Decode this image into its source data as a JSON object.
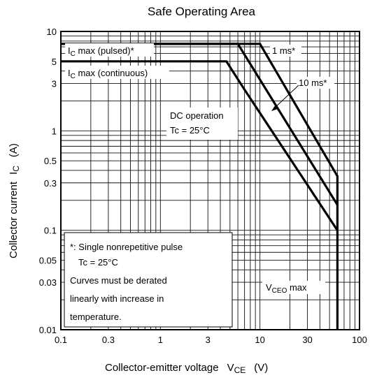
{
  "chart_data": {
    "type": "line",
    "title": "Safe Operating Area",
    "xlabel": "Collector-emitter voltage",
    "xlabel_sym": "V",
    "xlabel_sub": "CE",
    "xlabel_unit": "(V)",
    "ylabel": "Collector current",
    "ylabel_sym": "I",
    "ylabel_sub": "C",
    "ylabel_unit": "(A)",
    "xscale": "log",
    "yscale": "log",
    "xlim": [
      0.1,
      100
    ],
    "ylim": [
      0.01,
      10
    ],
    "grid": true,
    "xticks": [
      {
        "v": 0.1,
        "label": "0.1"
      },
      {
        "v": 0.3,
        "label": "0.3"
      },
      {
        "v": 1,
        "label": "1"
      },
      {
        "v": 3,
        "label": "3"
      },
      {
        "v": 10,
        "label": "10"
      },
      {
        "v": 30,
        "label": "30"
      },
      {
        "v": 100,
        "label": "100"
      }
    ],
    "yticks": [
      {
        "v": 0.01,
        "label": "0.01"
      },
      {
        "v": 0.03,
        "label": "0.03"
      },
      {
        "v": 0.05,
        "label": "0.05"
      },
      {
        "v": 0.1,
        "label": "0.1"
      },
      {
        "v": 0.3,
        "label": "0.3"
      },
      {
        "v": 0.5,
        "label": "0.5"
      },
      {
        "v": 1,
        "label": "1"
      },
      {
        "v": 3,
        "label": "3"
      },
      {
        "v": 5,
        "label": "5"
      },
      {
        "v": 10,
        "label": "10"
      }
    ],
    "series": [
      {
        "name": "1 ms*",
        "x": [
          0.1,
          10,
          60,
          60
        ],
        "y": [
          7.5,
          7.5,
          0.35,
          0.01
        ]
      },
      {
        "name": "10 ms*",
        "x": [
          0.1,
          6,
          60
        ],
        "y": [
          7.5,
          7.5,
          0.18
        ]
      },
      {
        "name": "DC operation",
        "x": [
          0.1,
          4.6,
          7,
          60
        ],
        "y": [
          5,
          5,
          2.6,
          0.1
        ]
      }
    ],
    "annotations": {
      "ic_pulsed": "IC max (pulsed)*",
      "ic_continuous": "IC max (continuous)",
      "one_ms": "1 ms*",
      "ten_ms": "10 ms*",
      "dc_line1": "DC operation",
      "dc_line2": "Tc = 25°C",
      "vceo": "VCEO max",
      "note_line1": "*: Single nonrepetitive pulse",
      "note_line2": "Tc = 25°C",
      "note_line3": "Curves must be derated",
      "note_line4": "linearly with increase in",
      "note_line5": "temperature."
    }
  }
}
